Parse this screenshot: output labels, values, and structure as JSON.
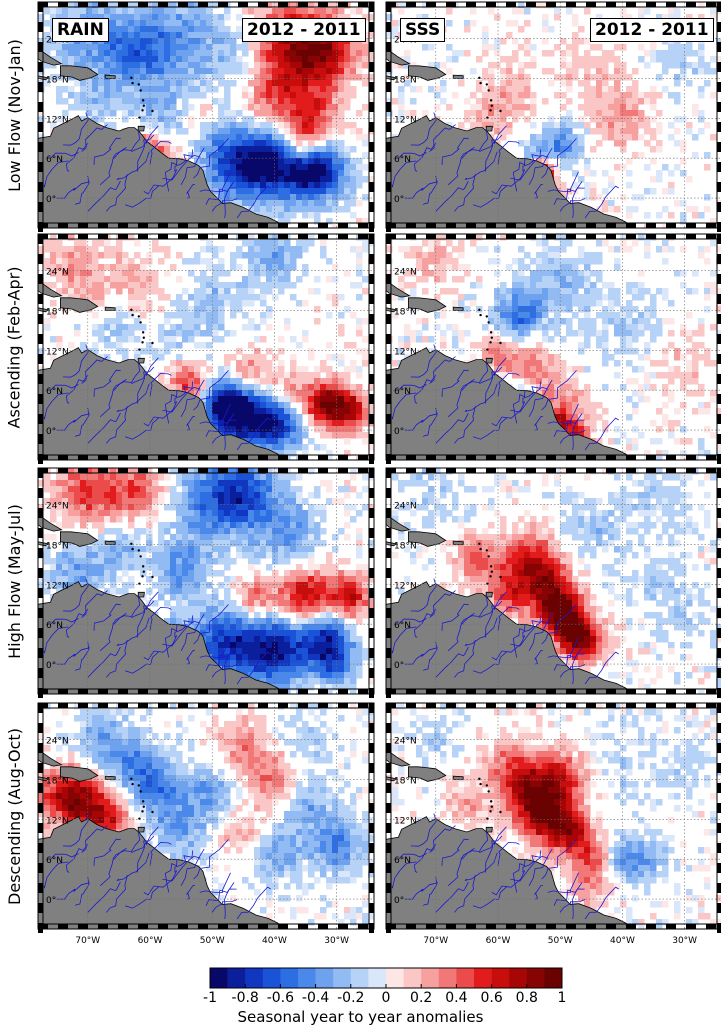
{
  "panels": {
    "rows": [
      {
        "label": "Low Flow (Nov-Jan)"
      },
      {
        "label": "Ascending (Feb-Apr)"
      },
      {
        "label": "High Flow (May-Jul)"
      },
      {
        "label": "Descending (Aug-Oct)"
      }
    ],
    "columns": [
      {
        "variable": "RAIN",
        "period": "2012 - 2011"
      },
      {
        "variable": "SSS",
        "period": "2012 - 2011"
      }
    ]
  },
  "axes": {
    "lat_ticks": [
      "24°N",
      "18°N",
      "12°N",
      "6°N",
      "0°"
    ],
    "lon_ticks": [
      "70°W",
      "60°W",
      "50°W",
      "40°W",
      "30°W"
    ]
  },
  "colorbar": {
    "ticks": [
      "-1",
      "-0.8",
      "-0.6",
      "-0.4",
      "-0.2",
      "0",
      "0.2",
      "0.4",
      "0.6",
      "0.8",
      "1"
    ],
    "title": "Seasonal year to year anomalies",
    "range": [
      -1,
      1
    ],
    "colors": [
      "#08086b",
      "#0b1f9c",
      "#1137c0",
      "#1a52d8",
      "#2e6ee3",
      "#4a88ea",
      "#6ea2ef",
      "#93bbf3",
      "#b7d2f7",
      "#dae7fb",
      "#fde6e6",
      "#fbc6c6",
      "#f7a0a0",
      "#f27878",
      "#ec4b4b",
      "#e21c1c",
      "#c80d0d",
      "#a80606",
      "#880303",
      "#6a0202"
    ]
  },
  "map": {
    "land_color": "#808080",
    "river_color": "#1a1ad0",
    "grid_color": "#6e6e6e"
  }
}
